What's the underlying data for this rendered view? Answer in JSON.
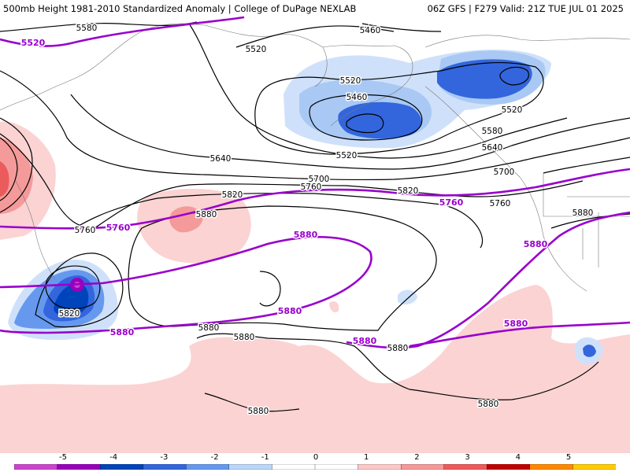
{
  "header": {
    "left": "500mb Height 1981-2010 Standardized Anomaly | College of DuPage NEXLAB",
    "right": "06Z GFS | F279 Valid: 21Z TUE JUL 01 2025"
  },
  "colorbar": {
    "ticks": [
      "-5",
      "-4",
      "-3",
      "-2",
      "-1",
      "0",
      "1",
      "2",
      "3",
      "4",
      "5"
    ],
    "colors": [
      "#cc44cc",
      "#9900bb",
      "#0044bb",
      "#3366dd",
      "#6699ee",
      "#bbd6f8",
      "#ffffff",
      "#ffffff",
      "#fbc8c8",
      "#f49a9a",
      "#ec5b5b",
      "#c00000",
      "#ff8800",
      "#ffcc00"
    ]
  },
  "contours": {
    "black_labels": [
      "5580",
      "5520",
      "5460",
      "5520",
      "5460",
      "5520",
      "5520",
      "5580",
      "5640",
      "5640",
      "5700",
      "5700",
      "5760",
      "5820",
      "5760",
      "5820",
      "5880",
      "5760",
      "5880",
      "5880",
      "5820",
      "5880",
      "5880",
      "5880",
      "5880"
    ],
    "purple_labels": [
      "5520",
      "5760",
      "5760",
      "5880",
      "5880",
      "5880",
      "5880",
      "5880",
      "5880"
    ]
  }
}
